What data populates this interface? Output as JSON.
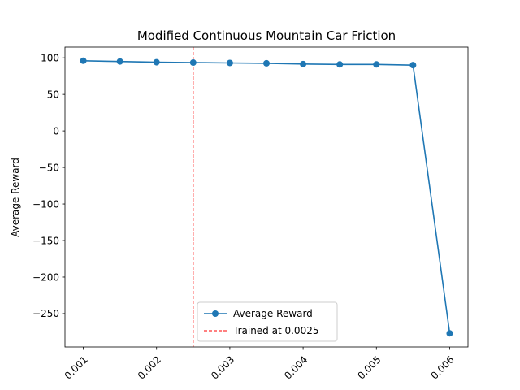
{
  "chart_data": {
    "type": "line",
    "title": "Modified Continuous Mountain Car Friction",
    "xlabel": "",
    "ylabel": "Average Reward",
    "x": [
      0.001,
      0.0015,
      0.002,
      0.0025,
      0.003,
      0.0035,
      0.004,
      0.0045,
      0.005,
      0.0055,
      0.006
    ],
    "series": [
      {
        "name": "Average Reward",
        "color": "#1f77b4",
        "marker": "circle",
        "values": [
          96,
          95,
          94,
          93.5,
          93,
          92.5,
          91.5,
          91,
          91,
          90,
          -277
        ]
      }
    ],
    "reference_line": {
      "name": "Trained at 0.0025",
      "x": 0.0025,
      "color": "#ff0000",
      "style": "dashed"
    },
    "xlim": [
      0.00075,
      0.00625
    ],
    "ylim": [
      -295.65,
      114.65
    ],
    "xticks": [
      0.001,
      0.002,
      0.003,
      0.004,
      0.005,
      0.006
    ],
    "xtick_labels": [
      "0.001",
      "0.002",
      "0.003",
      "0.004",
      "0.005",
      "0.006"
    ],
    "yticks": [
      100,
      50,
      0,
      -50,
      -100,
      -150,
      -200,
      -250
    ],
    "ytick_labels": [
      "100",
      "50",
      "0",
      "−50",
      "−100",
      "−150",
      "−200",
      "−250"
    ],
    "legend_position": "lower center",
    "grid": false
  }
}
